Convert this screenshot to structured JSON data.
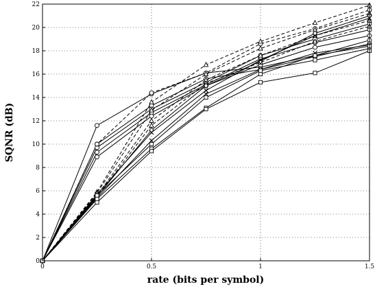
{
  "chart_data": {
    "type": "line",
    "title": "",
    "xlabel": "rate (bits per symbol)",
    "ylabel": "SQNR (dB)",
    "xlim": [
      0,
      1.5
    ],
    "ylim": [
      0,
      22
    ],
    "grid": true,
    "x_tick_labels": [
      "0",
      "0.5",
      "1",
      "1.5"
    ],
    "y_tick_labels": [
      "0",
      "2",
      "4",
      "6",
      "8",
      "10",
      "12",
      "14",
      "16",
      "18",
      "20",
      "22"
    ],
    "x": [
      0,
      0.25,
      0.5,
      0.75,
      1,
      1.25,
      1.5
    ],
    "series": [
      {
        "marker": "circle",
        "style": "solid",
        "values": [
          0,
          11.6,
          14.3,
          16.1,
          16.6,
          17.6,
          18.9
        ]
      },
      {
        "marker": "circle",
        "style": "solid",
        "values": [
          0,
          10.0,
          13.3,
          15.6,
          16.4,
          17.5,
          18.6
        ]
      },
      {
        "marker": "circle",
        "style": "solid",
        "values": [
          0,
          9.7,
          13.0,
          15.3,
          17.6,
          19.0,
          20.3
        ]
      },
      {
        "marker": "circle",
        "style": "solid",
        "values": [
          0,
          9.3,
          12.7,
          15.1,
          17.3,
          18.7,
          19.8
        ]
      },
      {
        "marker": "circle",
        "style": "solid",
        "values": [
          0,
          8.9,
          12.4,
          15.0,
          16.8,
          18.3,
          19.3
        ]
      },
      {
        "marker": "circle",
        "style": "dashed",
        "values": [
          0,
          10.0,
          14.4,
          16.1,
          18.6,
          19.9,
          21.5
        ]
      },
      {
        "marker": "triangle",
        "style": "dashed",
        "values": [
          0,
          5.9,
          13.6,
          16.8,
          18.8,
          20.4,
          21.9
        ]
      },
      {
        "marker": "triangle",
        "style": "dashed",
        "values": [
          0,
          5.8,
          12.9,
          16.0,
          18.2,
          19.8,
          21.2
        ]
      },
      {
        "marker": "triangle",
        "style": "dashed",
        "values": [
          0,
          5.6,
          12.0,
          15.5,
          17.6,
          19.3,
          20.6
        ]
      },
      {
        "marker": "triangle",
        "style": "dashed",
        "values": [
          0,
          5.5,
          11.6,
          15.2,
          17.0,
          18.8,
          20.1
        ]
      },
      {
        "marker": "diamond",
        "style": "solid",
        "values": [
          0,
          5.5,
          11.2,
          15.0,
          17.1,
          19.5,
          21.0
        ]
      },
      {
        "marker": "x",
        "style": "solid",
        "values": [
          0,
          5.7,
          11.0,
          14.6,
          17.2,
          19.3,
          20.8
        ]
      },
      {
        "marker": "x",
        "style": "solid",
        "values": [
          0,
          5.4,
          10.3,
          14.3,
          16.4,
          17.8,
          18.5
        ]
      },
      {
        "marker": "square",
        "style": "solid",
        "values": [
          0,
          5.6,
          10.0,
          14.0,
          16.3,
          17.2,
          18.2
        ]
      },
      {
        "marker": "square",
        "style": "solid",
        "values": [
          0,
          5.3,
          9.6,
          13.1,
          16.0,
          17.6,
          18.4
        ]
      },
      {
        "marker": "square",
        "style": "solid",
        "values": [
          0,
          5.0,
          9.4,
          13.0,
          15.3,
          16.1,
          18.0
        ]
      }
    ]
  }
}
